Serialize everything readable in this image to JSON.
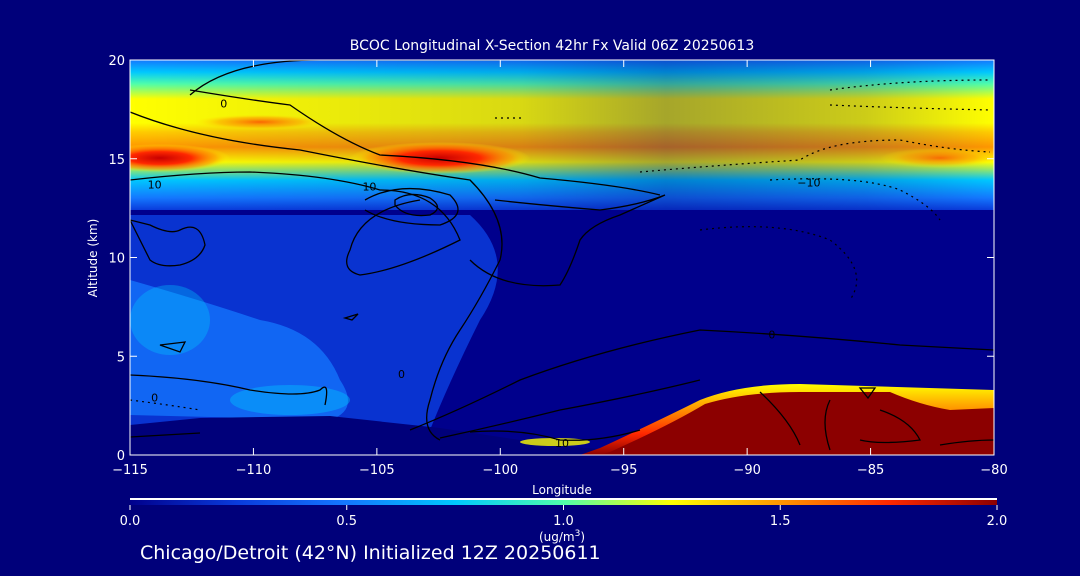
{
  "chart_data": {
    "type": "heatmap",
    "title": "BCOC Longitudinal X-Section 42hr  Fx Valid 06Z 20250613",
    "xlabel": "Longitude",
    "ylabel": "Altitude (km)",
    "xlim": [
      -115,
      -80
    ],
    "ylim": [
      0,
      20
    ],
    "x_ticks": [
      {
        "value": -115,
        "label": "−115"
      },
      {
        "value": -110,
        "label": "−110"
      },
      {
        "value": -105,
        "label": "−105"
      },
      {
        "value": -100,
        "label": "−100"
      },
      {
        "value": -95,
        "label": "−95"
      },
      {
        "value": -90,
        "label": "−90"
      },
      {
        "value": -85,
        "label": "−85"
      },
      {
        "value": -80,
        "label": "−80"
      }
    ],
    "y_ticks": [
      {
        "value": 0,
        "label": "0"
      },
      {
        "value": 5,
        "label": "5"
      },
      {
        "value": 10,
        "label": "10"
      },
      {
        "value": 15,
        "label": "15"
      },
      {
        "value": 20,
        "label": "20"
      }
    ],
    "colorbar": {
      "range": [
        0.0,
        2.0
      ],
      "ticks": [
        {
          "value": 0.0,
          "label": "0.0"
        },
        {
          "value": 0.5,
          "label": "0.5"
        },
        {
          "value": 1.0,
          "label": "1.0"
        },
        {
          "value": 1.5,
          "label": "1.5"
        },
        {
          "value": 2.0,
          "label": "2.0"
        }
      ],
      "units_label": "(ug/m",
      "units_superscript": "3",
      "units_close": ")",
      "colors": [
        "#00008c",
        "#0a3cdc",
        "#1478ff",
        "#00c8ff",
        "#50ffaa",
        "#ffff00",
        "#ff9600",
        "#ff2800",
        "#8c0000"
      ]
    },
    "contour_labels": [
      {
        "lon": -111.2,
        "alt": 17.8,
        "text": "0"
      },
      {
        "lon": -114.0,
        "alt": 13.7,
        "text": "10"
      },
      {
        "lon": -105.3,
        "alt": 13.6,
        "text": "10"
      },
      {
        "lon": -87.5,
        "alt": 13.8,
        "text": "−10"
      },
      {
        "lon": -89.0,
        "alt": 6.1,
        "text": "0"
      },
      {
        "lon": -104.0,
        "alt": 4.1,
        "text": "0"
      },
      {
        "lon": -114.0,
        "alt": 2.9,
        "text": "0"
      },
      {
        "lon": -97.5,
        "alt": 0.6,
        "text": "10"
      }
    ],
    "caption": "Chicago/Detroit (42°N) Initialized 12Z 20250611"
  }
}
